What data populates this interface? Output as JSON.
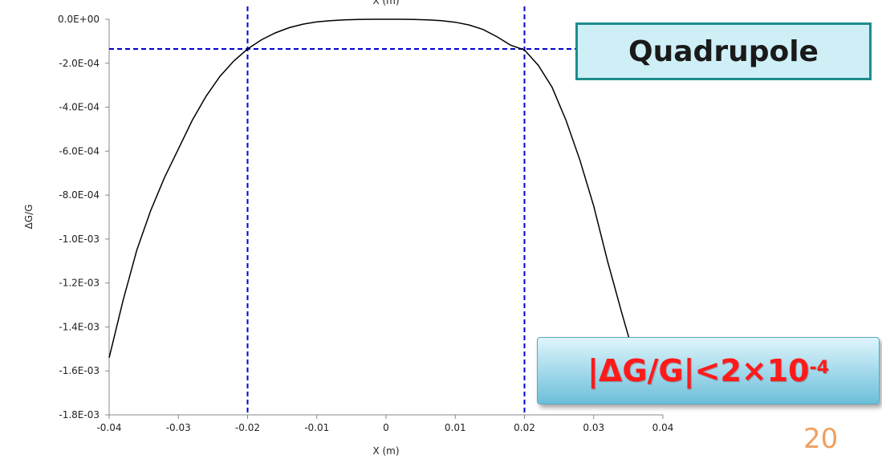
{
  "chart_data": {
    "type": "line",
    "title": "",
    "top_axis_label": "X (m)",
    "xlabel": "X (m)",
    "ylabel": "ΔG/G",
    "xlim": [
      -0.04,
      0.04
    ],
    "ylim": [
      -0.0018,
      0.0
    ],
    "x_ticks": [
      -0.04,
      -0.03,
      -0.02,
      -0.01,
      0,
      0.01,
      0.02,
      0.03,
      0.04
    ],
    "x_tick_labels": [
      "-0.04",
      "-0.03",
      "-0.02",
      "-0.01",
      "0",
      "0.01",
      "0.02",
      "0.03",
      "0.04"
    ],
    "y_ticks": [
      0.0,
      -0.0002,
      -0.0004,
      -0.0006,
      -0.0008,
      -0.001,
      -0.0012,
      -0.0014,
      -0.0016,
      -0.0018
    ],
    "y_tick_labels": [
      "0.0E+00",
      "-2.0E-04",
      "-4.0E-04",
      "-6.0E-04",
      "-8.0E-04",
      "-1.0E-03",
      "-1.2E-03",
      "-1.4E-03",
      "-1.6E-03",
      "-1.8E-03"
    ],
    "grid": false,
    "series": [
      {
        "color": "#000000",
        "x": [
          -0.04,
          -0.038,
          -0.036,
          -0.034,
          -0.032,
          -0.03,
          -0.028,
          -0.026,
          -0.024,
          -0.022,
          -0.02,
          -0.018,
          -0.016,
          -0.014,
          -0.012,
          -0.01,
          -0.008,
          -0.006,
          -0.004,
          -0.002,
          0,
          0.002,
          0.004,
          0.006,
          0.008,
          0.01,
          0.012,
          0.014,
          0.016,
          0.018,
          0.02,
          0.022,
          0.024,
          0.026,
          0.028,
          0.03,
          0.032,
          0.034,
          0.036,
          0.038
        ],
        "y": [
          -0.00154,
          -0.00128,
          -0.00105,
          -0.00087,
          -0.00072,
          -0.00059,
          -0.00046,
          -0.00035,
          -0.00026,
          -0.00019,
          -0.000135,
          -9.35e-05,
          -6.2e-05,
          -3.84e-05,
          -2.22e-05,
          -1.22e-05,
          -6.2e-06,
          -2.4e-06,
          -6e-07,
          -1e-07,
          0.0,
          -1e-07,
          -6e-07,
          -2.5e-06,
          -6.5e-06,
          -1.35e-05,
          -2.6e-05,
          -4.63e-05,
          -7.88e-05,
          -0.000118,
          -0.00014,
          -0.00021,
          -0.00031,
          -0.00046,
          -0.00064,
          -0.00085,
          -0.0011,
          -0.00133,
          -0.00155,
          -0.00172
        ]
      }
    ],
    "reference_lines": {
      "color": "#0000cc",
      "vertical_x": [
        -0.02,
        0.02
      ],
      "horizontal_y": -0.000135
    }
  },
  "annotations": {
    "magnet_label": "Quadrupole",
    "condition_main": "|ΔG/G|<2×10",
    "condition_exp": "-4",
    "condition_color": "#ff1a1a",
    "box_color": "#cfeff7"
  },
  "page_number": "20"
}
